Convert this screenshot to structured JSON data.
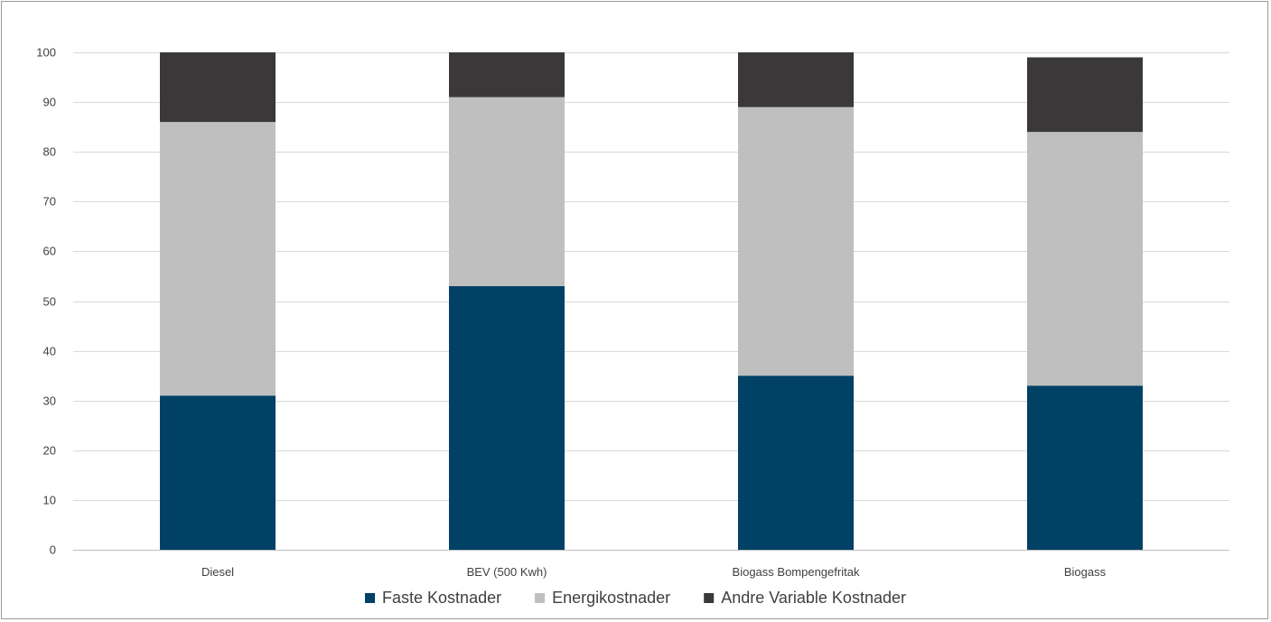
{
  "chart_data": {
    "type": "bar",
    "stacked": true,
    "categories": [
      "Diesel",
      "BEV (500 Kwh)",
      "Biogass Bompengefritak",
      "Biogass"
    ],
    "series": [
      {
        "name": "Faste Kostnader",
        "values": [
          31,
          53,
          35,
          33
        ],
        "color": "#004165"
      },
      {
        "name": "Energikostnader",
        "values": [
          55,
          38,
          54,
          51
        ],
        "color": "#bfbfbf"
      },
      {
        "name": "Andre Variable Kostnader",
        "values": [
          14,
          9,
          11,
          15
        ],
        "color": "#3a3838"
      }
    ],
    "ylim": [
      0,
      100
    ],
    "yticks": [
      "0",
      "10",
      "20",
      "30",
      "40",
      "50",
      "60",
      "70",
      "80",
      "90",
      "100"
    ],
    "grid": true,
    "legend_position": "bottom"
  }
}
